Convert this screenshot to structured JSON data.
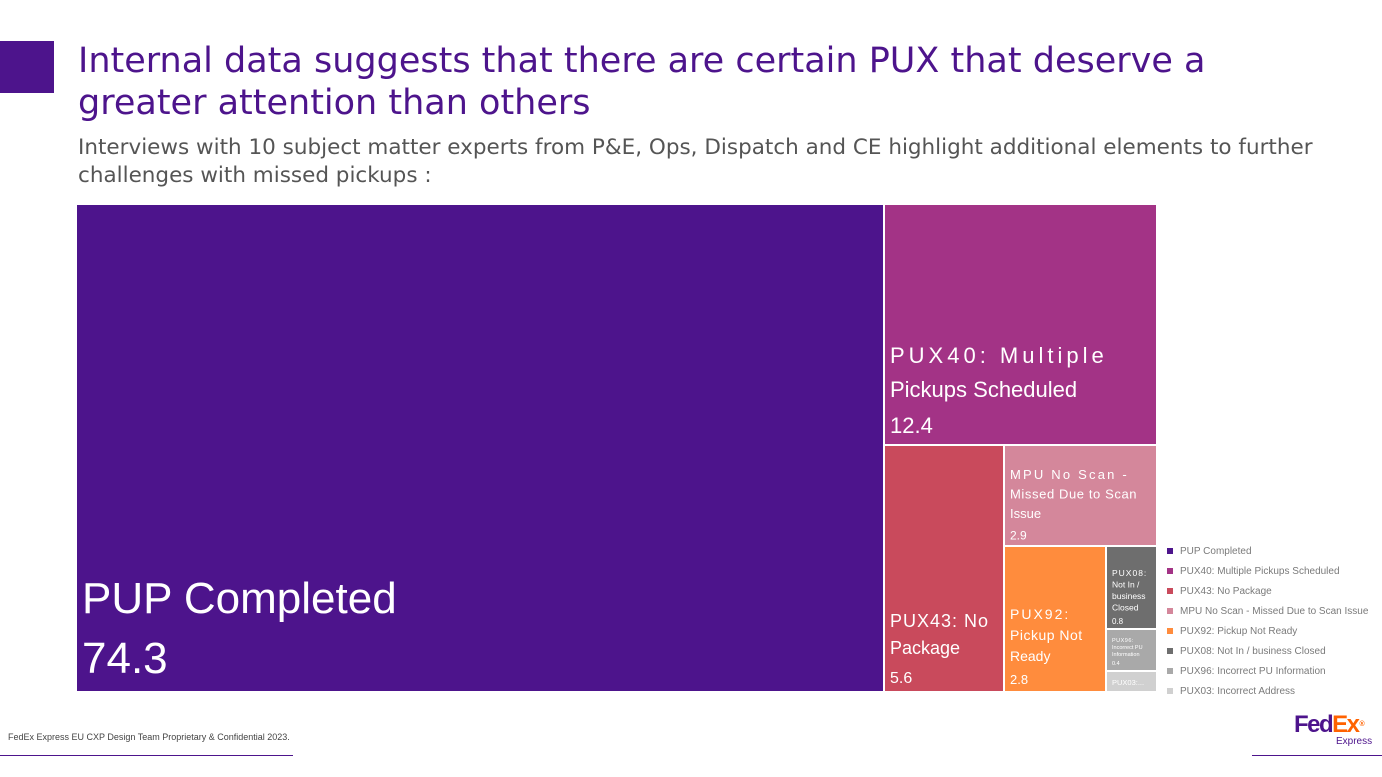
{
  "header": {
    "title": "Internal data suggests that there are certain PUX that deserve a greater attention than others",
    "subtitle": "Interviews with 10 subject matter experts from P&E, Ops, Dispatch and CE highlight additional elements to further challenges with missed pickups :"
  },
  "chart_data": {
    "type": "treemap",
    "title": "",
    "series": [
      {
        "name": "PUP Completed",
        "value": 74.3,
        "label": "PUP Completed",
        "value_label": "74.3",
        "color": "#4d148c"
      },
      {
        "name": "PUX40: Multiple Pickups Scheduled",
        "value": 12.4,
        "label": "PUX40: Multiple Pickups Scheduled",
        "value_label": "12.4",
        "color": "#a33386"
      },
      {
        "name": "PUX43: No Package",
        "value": 5.6,
        "label": "PUX43: No Package",
        "value_label": "5.6",
        "color": "#c94a5c"
      },
      {
        "name": "MPU No Scan - Missed Due to Scan Issue",
        "value": 2.9,
        "label": "MPU No Scan - Missed Due to Scan Issue",
        "value_label": "2.9",
        "color": "#d4879b"
      },
      {
        "name": "PUX92: Pickup Not Ready",
        "value": 2.8,
        "label": "PUX92: Pickup Not Ready",
        "value_label": "2.8",
        "color": "#ff8c3d"
      },
      {
        "name": "PUX08: Not In / business Closed",
        "value": 0.8,
        "label": "PUX08: Not In / business Closed",
        "value_label": "0.8",
        "color": "#6e6e6e"
      },
      {
        "name": "PUX96: Incorrect PU Information",
        "value": 0.4,
        "label": "PUX96: Incorrect PU Information",
        "value_label": "0.4",
        "color": "#a9a9a9"
      },
      {
        "name": "PUX03: Incorrect Address",
        "value": null,
        "label": "PUX03:...",
        "value_label": "",
        "color": "#d0d0d0"
      }
    ],
    "legend": [
      "PUP Completed",
      "PUX40: Multiple Pickups Scheduled",
      "PUX43: No Package",
      "MPU No Scan - Missed Due to Scan Issue",
      "PUX92: Pickup Not Ready",
      "PUX08: Not In / business Closed",
      "PUX96: Incorrect PU Information",
      "PUX03: Incorrect Address"
    ],
    "legend_position": "right"
  },
  "footer": {
    "confidential": "FedEx Express EU CXP Design Team Proprietary & Confidential 2023.",
    "logo_fed": "Fed",
    "logo_ex": "Ex",
    "logo_reg": "®",
    "logo_sub": "Express"
  }
}
